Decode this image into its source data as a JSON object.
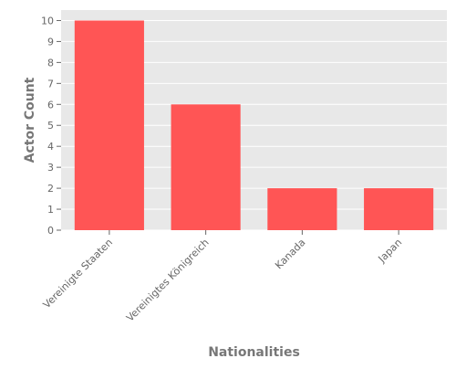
{
  "chart_data": {
    "type": "bar",
    "title": "",
    "xlabel": "Nationalities",
    "ylabel": "Actor Count",
    "categories": [
      "Vereinigte Staaten",
      "Vereinigtes Königreich",
      "Kanada",
      "Japan"
    ],
    "values": [
      10,
      6,
      2,
      2
    ],
    "ylim": [
      0,
      10.5
    ],
    "yticks": [
      0,
      1,
      2,
      3,
      4,
      5,
      6,
      7,
      8,
      9,
      10
    ],
    "grid": true,
    "legend": "none",
    "colors": {
      "bar": "#FF5555",
      "plot_background": "#E8E8E8",
      "grid": "#FFFFFF"
    }
  }
}
